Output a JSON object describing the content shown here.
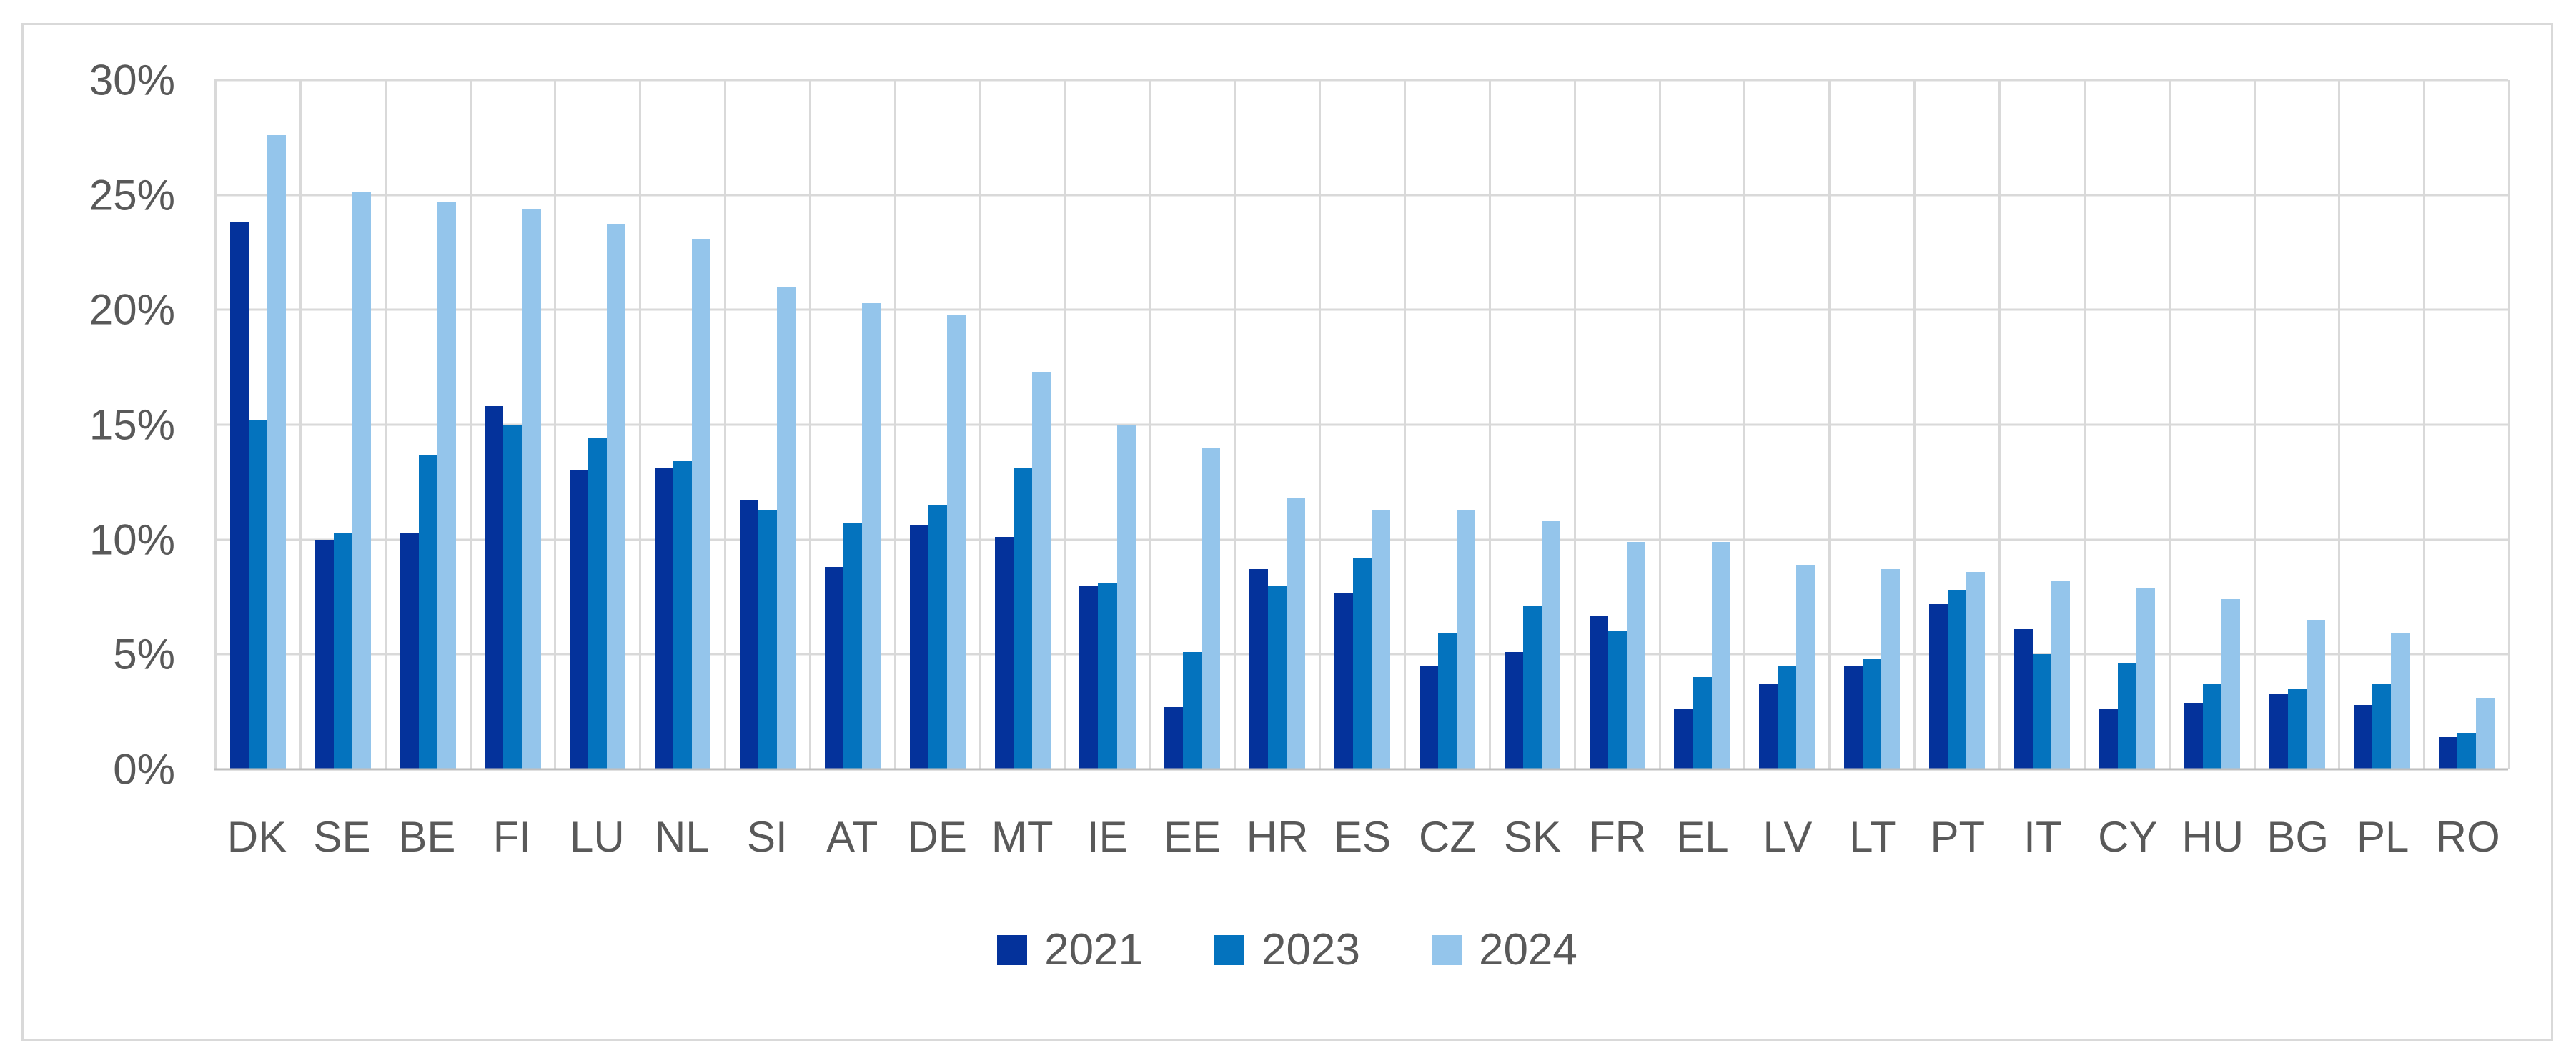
{
  "chart_data": {
    "type": "bar",
    "title": "",
    "categories": [
      "DK",
      "SE",
      "BE",
      "FI",
      "LU",
      "NL",
      "SI",
      "AT",
      "DE",
      "MT",
      "IE",
      "EE",
      "HR",
      "ES",
      "CZ",
      "SK",
      "FR",
      "EL",
      "LV",
      "LT",
      "PT",
      "IT",
      "CY",
      "HU",
      "BG",
      "PL",
      "RO"
    ],
    "series": [
      {
        "name": "2021",
        "color": "#04329B",
        "values": [
          23.8,
          10.0,
          10.3,
          15.8,
          13.0,
          13.1,
          11.7,
          8.8,
          10.6,
          10.1,
          8.0,
          2.7,
          8.7,
          7.7,
          4.5,
          5.1,
          6.7,
          2.6,
          3.7,
          4.5,
          7.2,
          6.1,
          2.6,
          2.9,
          3.3,
          2.8,
          1.4
        ]
      },
      {
        "name": "2023",
        "color": "#0473BE",
        "values": [
          15.2,
          10.3,
          13.7,
          15.0,
          14.4,
          13.4,
          11.3,
          10.7,
          11.5,
          13.1,
          8.1,
          5.1,
          8.0,
          9.2,
          5.9,
          7.1,
          6.0,
          4.0,
          4.5,
          4.8,
          7.8,
          5.0,
          4.6,
          3.7,
          3.5,
          3.7,
          1.6
        ]
      },
      {
        "name": "2024",
        "color": "#94C5EB",
        "values": [
          27.6,
          25.1,
          24.7,
          24.4,
          23.7,
          23.1,
          21.0,
          20.3,
          19.8,
          17.3,
          15.0,
          14.0,
          11.8,
          11.3,
          11.3,
          10.8,
          9.9,
          9.9,
          8.9,
          8.7,
          8.6,
          8.2,
          7.9,
          7.4,
          6.5,
          5.9,
          3.1
        ]
      }
    ],
    "xlabel": "",
    "ylabel": "",
    "ylim": [
      0,
      30
    ],
    "yticks": [
      {
        "value": 0,
        "label": "0%"
      },
      {
        "value": 5,
        "label": "5%"
      },
      {
        "value": 10,
        "label": "10%"
      },
      {
        "value": 15,
        "label": "15%"
      },
      {
        "value": 20,
        "label": "20%"
      },
      {
        "value": 25,
        "label": "25%"
      },
      {
        "value": 30,
        "label": "30%"
      }
    ],
    "grid": "both",
    "legend_position": "bottom"
  },
  "colors": {
    "axis_text": "#595959",
    "gridline": "#D9D9D9",
    "axis_line": "#BFBFBF",
    "frame_border": "#D9D9D9",
    "background": "#FFFFFF"
  }
}
